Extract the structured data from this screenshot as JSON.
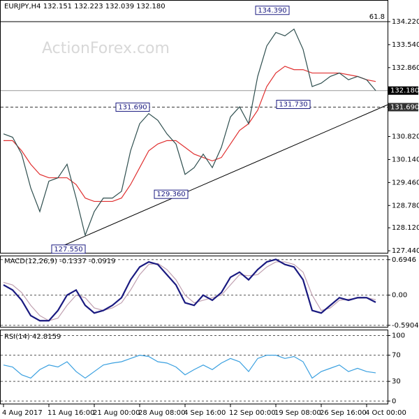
{
  "chart_data": [
    {
      "type": "line",
      "title": "EURJPY,H4  132.151 132.223 132.039 132.180",
      "watermark": "ActionForex.com",
      "categories": [
        "4 Aug 2017",
        null,
        null,
        null,
        null,
        "11 Aug 16:00",
        null,
        null,
        null,
        null,
        "21 Aug 00:00",
        null,
        null,
        null,
        null,
        "28 Aug 08:00",
        null,
        null,
        null,
        null,
        "4 Sep 16:00",
        null,
        null,
        null,
        null,
        "12 Sep 00:00",
        null,
        null,
        null,
        null,
        "19 Sep 08:00",
        null,
        null,
        null,
        null,
        "26 Sep 16:00",
        null,
        null,
        null,
        null,
        "4 Oct 00:00",
        null
      ],
      "series": [
        {
          "color": "#2f4f4f",
          "values": [
            130.9,
            130.8,
            130.3,
            129.3,
            128.6,
            129.5,
            129.6,
            130.0,
            129.0,
            127.9,
            128.6,
            129.0,
            129.0,
            129.2,
            130.4,
            131.2,
            131.5,
            131.3,
            130.9,
            130.6,
            129.7,
            129.9,
            130.3,
            129.9,
            130.5,
            131.4,
            131.7,
            131.2,
            132.6,
            133.5,
            133.9,
            133.8,
            134.0,
            133.4,
            132.3,
            132.4,
            132.6,
            132.7,
            132.5,
            132.6,
            132.5,
            132.18
          ]
        },
        {
          "color": "#e03030",
          "values": [
            130.7,
            130.7,
            130.4,
            130.0,
            129.7,
            129.6,
            129.6,
            129.6,
            129.4,
            129.0,
            128.9,
            128.9,
            128.9,
            129.0,
            129.4,
            129.9,
            130.4,
            130.6,
            130.7,
            130.7,
            130.5,
            130.3,
            130.2,
            130.1,
            130.2,
            130.6,
            131.0,
            131.2,
            131.6,
            132.3,
            132.7,
            132.9,
            132.8,
            132.8,
            132.7,
            132.7,
            132.7,
            132.7,
            132.65,
            132.6,
            132.5,
            132.45
          ]
        }
      ],
      "ylim": [
        127.38,
        134.84
      ],
      "yticks": [
        {
          "value": 134.22,
          "label": "134.220"
        },
        {
          "value": 133.54,
          "label": "133.540"
        },
        {
          "value": 132.86,
          "label": "132.860"
        },
        {
          "value": 130.82,
          "label": "130.820"
        },
        {
          "value": 130.14,
          "label": "130.140"
        },
        {
          "value": 129.46,
          "label": "129.460"
        },
        {
          "value": 128.78,
          "label": "128.780"
        },
        {
          "value": 128.12,
          "label": "128.120"
        },
        {
          "value": 127.44,
          "label": "127.440"
        }
      ],
      "levels": [
        {
          "value": 132.18,
          "label": "132.180"
        },
        {
          "value": 131.69,
          "label": "131.690"
        }
      ],
      "fib": {
        "value": 134.22,
        "label": "61.8"
      },
      "annotations": [
        {
          "value": 134.39,
          "label": "134.390"
        },
        {
          "value": 131.69,
          "label": "131.690"
        },
        {
          "value": 131.73,
          "label": "131.730"
        },
        {
          "value": 129.36,
          "label": "129.360"
        },
        {
          "value": 127.55,
          "label": "127.550"
        }
      ],
      "grid": false
    },
    {
      "type": "line",
      "title": "MACD(12,26,9) -0.1337 -0.0919",
      "series": [
        {
          "color": "#1a1a80",
          "values": [
            0.2,
            0.1,
            -0.1,
            -0.4,
            -0.5,
            -0.5,
            -0.3,
            0.0,
            0.1,
            -0.2,
            -0.35,
            -0.3,
            -0.2,
            -0.05,
            0.3,
            0.55,
            0.65,
            0.6,
            0.4,
            0.2,
            -0.15,
            -0.2,
            0.0,
            -0.1,
            0.05,
            0.35,
            0.45,
            0.3,
            0.5,
            0.65,
            0.7,
            0.6,
            0.55,
            0.3,
            -0.3,
            -0.35,
            -0.2,
            -0.05,
            -0.1,
            -0.05,
            -0.05,
            -0.14
          ]
        },
        {
          "color": "#c0a0b0",
          "values": [
            0.25,
            0.2,
            0.05,
            -0.2,
            -0.4,
            -0.5,
            -0.45,
            -0.2,
            0.0,
            -0.05,
            -0.25,
            -0.3,
            -0.25,
            -0.15,
            0.1,
            0.4,
            0.6,
            0.62,
            0.5,
            0.3,
            0.0,
            -0.15,
            -0.1,
            -0.05,
            0.0,
            0.2,
            0.4,
            0.38,
            0.4,
            0.55,
            0.65,
            0.65,
            0.6,
            0.45,
            0.0,
            -0.3,
            -0.25,
            -0.1,
            -0.08,
            -0.06,
            -0.05,
            -0.09
          ]
        }
      ],
      "ylim": [
        -0.62,
        0.76
      ],
      "yticks": [
        0.6946,
        {
          "value": 0,
          "label": "0.00"
        },
        -0.5904
      ],
      "grid": true
    },
    {
      "type": "line",
      "title": "RSI(14) 42.8159",
      "series": [
        {
          "color": "#3aa0e0",
          "values": [
            55,
            52,
            40,
            35,
            48,
            55,
            52,
            60,
            45,
            35,
            45,
            55,
            58,
            60,
            65,
            70,
            68,
            60,
            58,
            52,
            40,
            48,
            55,
            48,
            58,
            65,
            60,
            45,
            65,
            70,
            70,
            65,
            68,
            60,
            35,
            45,
            50,
            55,
            45,
            50,
            45,
            43
          ]
        }
      ],
      "ylim": [
        -4,
        108
      ],
      "yticks": [
        100,
        70,
        30,
        0
      ],
      "grid": true
    }
  ]
}
